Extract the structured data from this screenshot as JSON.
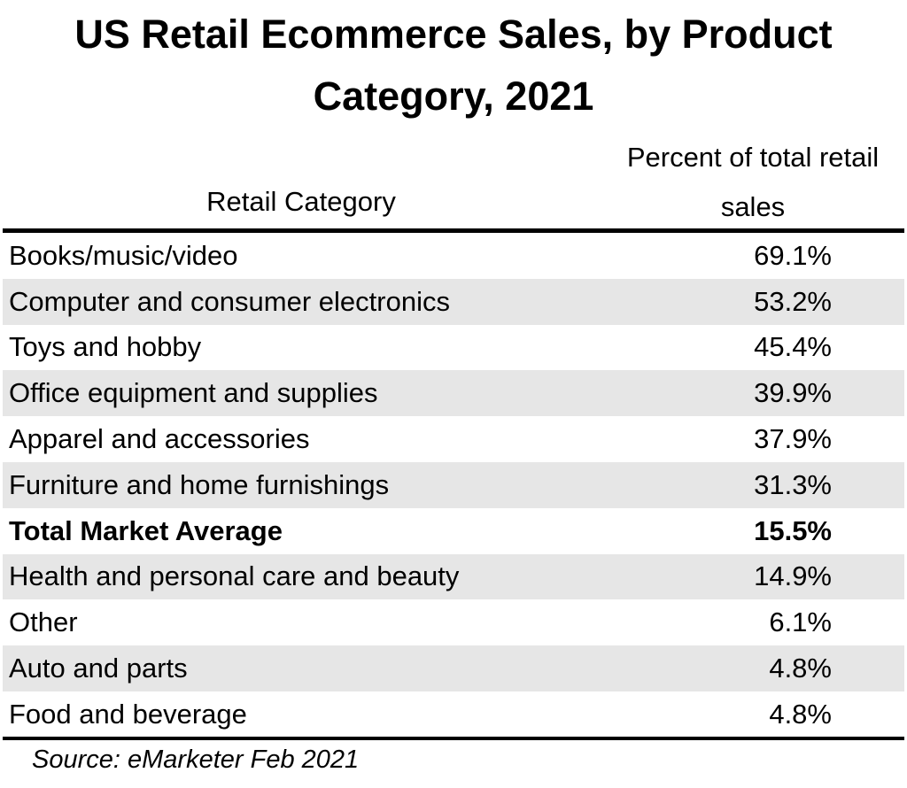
{
  "chart_data": {
    "type": "table",
    "title": "US Retail Ecommerce Sales, by Product Category, 2021",
    "columns": [
      "Retail Category",
      "Percent of total retail sales"
    ],
    "rows": [
      {
        "category": "Books/music/video",
        "value": "69.1%"
      },
      {
        "category": "Computer and consumer electronics",
        "value": "53.2%"
      },
      {
        "category": "Toys and hobby",
        "value": "45.4%"
      },
      {
        "category": "Office equipment and supplies",
        "value": "39.9%"
      },
      {
        "category": "Apparel and accessories",
        "value": "37.9%"
      },
      {
        "category": "Furniture and home furnishings",
        "value": "31.3%"
      },
      {
        "category": "Total Market Average",
        "value": "15.5%",
        "bold": true
      },
      {
        "category": "Health and personal care and beauty",
        "value": "14.9%"
      },
      {
        "category": "Other",
        "value": "6.1%"
      },
      {
        "category": "Auto and parts",
        "value": "4.8%"
      },
      {
        "category": "Food and beverage",
        "value": "4.8%"
      }
    ],
    "source": "Source: eMarketer Feb 2021",
    "stripe_color": "#e6e6e6"
  }
}
